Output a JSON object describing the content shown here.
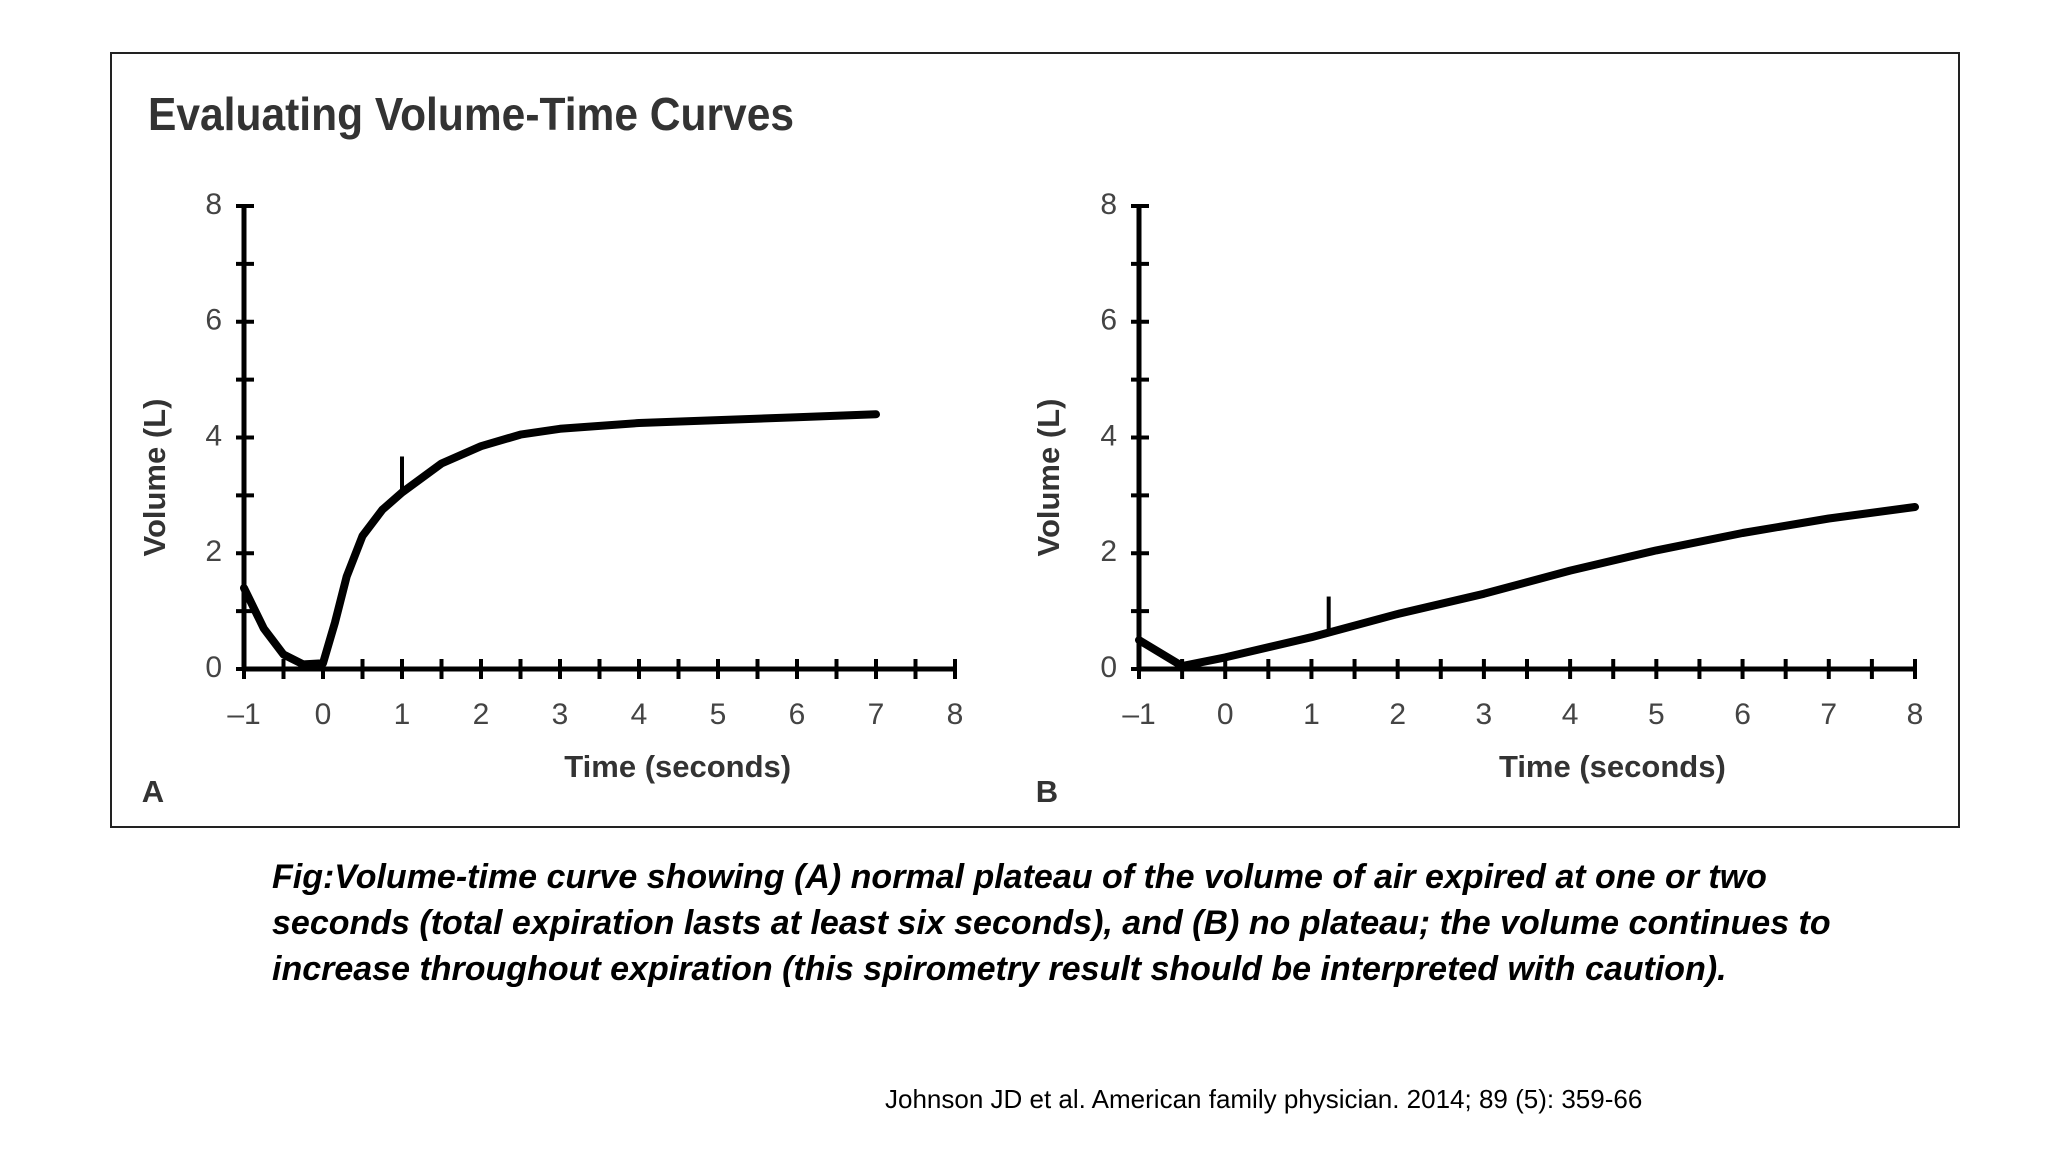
{
  "title": "Evaluating Volume-Time Curves",
  "caption_lines": [
    "Fig:Volume-time curve showing (A) normal plateau of the volume of air expired at one or two",
    "seconds (total expiration lasts at least six seconds), and (B) no plateau; the volume continues to",
    "increase throughout expiration (this spirometry result should be interpreted with caution)."
  ],
  "citation": "Johnson JD et al. American family physician. 2014; 89 (5): 359-66",
  "chart_data": [
    {
      "type": "line",
      "panel_label": "A",
      "x_label": "Time (seconds)",
      "y_label": "Volume (L)",
      "color": "#000000",
      "x": [
        -1,
        -0.75,
        -0.5,
        -0.25,
        0,
        0.15,
        0.3,
        0.5,
        0.75,
        1,
        1.5,
        2,
        2.5,
        3,
        4,
        5,
        6,
        7
      ],
      "values": [
        1.4,
        0.7,
        0.25,
        0.08,
        0.1,
        0.8,
        1.6,
        2.3,
        2.75,
        3.05,
        3.55,
        3.85,
        4.05,
        4.15,
        4.25,
        4.3,
        4.35,
        4.4
      ],
      "marker_x": 1,
      "xlim": [
        -1,
        8
      ],
      "ylim": [
        0,
        8
      ],
      "xticks": [
        {
          "value": -1,
          "label": "–1"
        },
        0,
        1,
        2,
        3,
        4,
        5,
        6,
        7,
        8
      ],
      "xminorticks": [
        -0.5,
        0.5,
        1.5,
        2.5,
        3.5,
        4.5,
        5.5,
        6.5,
        7.5
      ],
      "yticks": [
        0,
        2,
        4,
        6,
        8
      ],
      "yminorticks": [
        1,
        3,
        5,
        7
      ]
    },
    {
      "type": "line",
      "panel_label": "B",
      "x_label": "Time (seconds)",
      "y_label": "Volume (L)",
      "color": "#000000",
      "x": [
        -1,
        -0.5,
        0,
        1,
        2,
        3,
        4,
        5,
        6,
        7,
        8
      ],
      "values": [
        0.5,
        0.05,
        0.2,
        0.55,
        0.95,
        1.3,
        1.7,
        2.05,
        2.35,
        2.6,
        2.8
      ],
      "marker_x": 1.2,
      "xlim": [
        -1,
        8
      ],
      "ylim": [
        0,
        8
      ],
      "xticks": [
        {
          "value": -1,
          "label": "–1"
        },
        0,
        1,
        2,
        3,
        4,
        5,
        6,
        7,
        8
      ],
      "xminorticks": [
        -0.5,
        0.5,
        1.5,
        2.5,
        3.5,
        4.5,
        5.5,
        6.5,
        7.5
      ],
      "yticks": [
        0,
        2,
        4,
        6,
        8
      ],
      "yminorticks": [
        1,
        3,
        5,
        7
      ]
    }
  ]
}
